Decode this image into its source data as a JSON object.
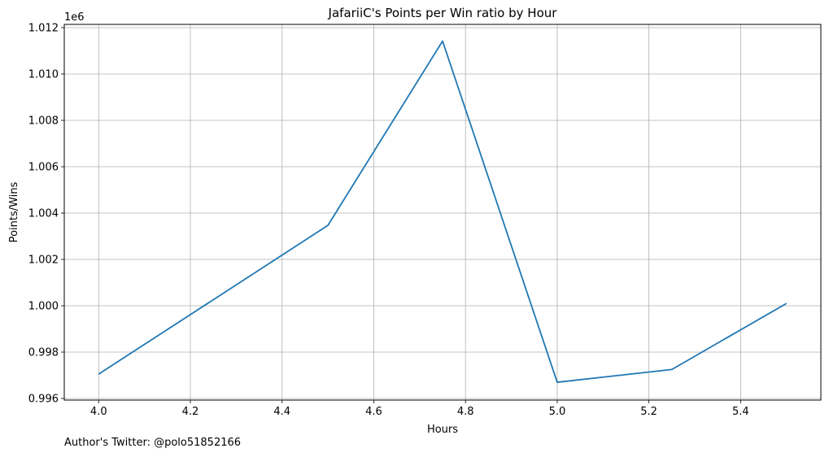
{
  "chart_data": {
    "type": "line",
    "title": "JafariiC's Points per Win ratio by Hour",
    "xlabel": "Hours",
    "ylabel": "Points/Wins",
    "y_offset_label": "1e6",
    "x_ticks": [
      "4.0",
      "4.2",
      "4.4",
      "4.6",
      "4.8",
      "5.0",
      "5.2",
      "5.4"
    ],
    "x_tick_values": [
      4.0,
      4.2,
      4.4,
      4.6,
      4.8,
      5.0,
      5.2,
      5.4
    ],
    "y_ticks": [
      "0.996",
      "0.998",
      "1.000",
      "1.002",
      "1.004",
      "1.006",
      "1.008",
      "1.010",
      "1.012"
    ],
    "y_tick_values": [
      996000,
      998000,
      1000000,
      1002000,
      1004000,
      1006000,
      1008000,
      1010000,
      1012000
    ],
    "xlim": [
      3.925,
      5.575
    ],
    "ylim": [
      995930,
      1012140
    ],
    "grid": true,
    "series": [
      {
        "color": "#1f77b4",
        "x": [
          4.0,
          4.5,
          4.75,
          5.0,
          5.25,
          5.5
        ],
        "y": [
          997050,
          1003470,
          1011420,
          996700,
          997250,
          1000100
        ]
      }
    ]
  },
  "footer": {
    "text": "Author's Twitter: @polo51852166"
  }
}
